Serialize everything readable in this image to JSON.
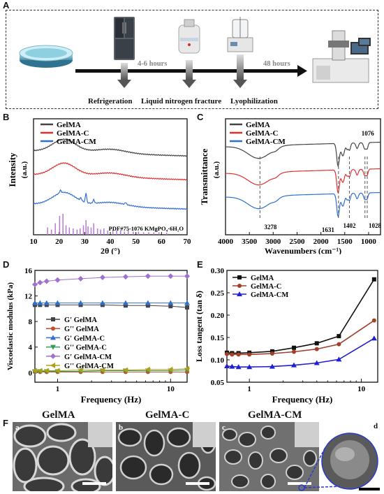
{
  "panels": {
    "a": "A",
    "b": "B",
    "c": "C",
    "d": "D",
    "e": "E",
    "f": "F"
  },
  "workflow": {
    "steps": [
      "Refrigeration",
      "Liquid nitrogen fracture",
      "Lyophilization"
    ],
    "times": [
      "4-6 hours",
      "48 hours"
    ]
  },
  "sem": {
    "titles": [
      "GelMA",
      "GelMA-C",
      "GelMA-CM"
    ],
    "sublabels": [
      "a",
      "b",
      "c",
      "d"
    ]
  },
  "chart_data": [
    {
      "id": "B",
      "type": "line",
      "xlabel": "2θ (°)",
      "ylabel": "Intensity",
      "ylabel_unit": "(a.u.)",
      "xlim": [
        10,
        70
      ],
      "xticks": [
        10,
        20,
        30,
        40,
        50,
        60,
        70
      ],
      "series": [
        {
          "name": "GelMA",
          "color": "#444444"
        },
        {
          "name": "GelMA-C",
          "color": "#e03030"
        },
        {
          "name": "GelMA-CM",
          "color": "#2f6fd0"
        }
      ],
      "reference": {
        "label": "PDF#75-1076 KMgPO₄·6H₂O",
        "color": "#b57ad0",
        "sticks": [
          [
            15.5,
            0.35
          ],
          [
            17,
            0.25
          ],
          [
            18.5,
            0.55
          ],
          [
            20.2,
            0.9
          ],
          [
            21.5,
            1.0
          ],
          [
            22.7,
            0.45
          ],
          [
            24,
            0.35
          ],
          [
            25.5,
            0.3
          ],
          [
            27,
            0.25
          ],
          [
            28.2,
            0.3
          ],
          [
            29.5,
            0.45
          ],
          [
            30.5,
            0.7
          ],
          [
            31.3,
            0.4
          ],
          [
            32.5,
            0.35
          ],
          [
            33.5,
            0.55
          ],
          [
            35,
            0.3
          ],
          [
            36.2,
            0.25
          ],
          [
            37.5,
            0.3
          ],
          [
            39,
            0.2
          ],
          [
            41,
            0.25
          ],
          [
            42.5,
            0.2
          ],
          [
            44,
            0.2
          ],
          [
            45.5,
            0.15
          ],
          [
            47,
            0.2
          ],
          [
            49,
            0.15
          ],
          [
            51,
            0.15
          ],
          [
            53,
            0.12
          ],
          [
            55,
            0.12
          ],
          [
            57,
            0.12
          ],
          [
            59,
            0.12
          ],
          [
            62,
            0.1
          ]
        ]
      }
    },
    {
      "id": "C",
      "type": "line",
      "xlabel": "Wavenumbers  (cm⁻¹)",
      "ylabel": "Transmittance",
      "ylabel_unit": "(a.u.)",
      "xlim": [
        4000,
        750
      ],
      "xticks": [
        4000,
        3500,
        3000,
        2500,
        2000,
        1500,
        1000
      ],
      "series": [
        {
          "name": "GelMA",
          "color": "#444444"
        },
        {
          "name": "GelMA-C",
          "color": "#e03030"
        },
        {
          "name": "GelMA-CM",
          "color": "#2f6fd0"
        }
      ],
      "annotations": [
        {
          "x": 3278,
          "label": "3278"
        },
        {
          "x": 1631,
          "label": "1631"
        },
        {
          "x": 1402,
          "label": "1402"
        },
        {
          "x": 1076,
          "label": "1076"
        },
        {
          "x": 1028,
          "label": "1028"
        }
      ]
    },
    {
      "id": "D",
      "type": "line",
      "x_scale": "log",
      "xlabel": "Frequency (Hz)",
      "ylabel": "Viscoelastic modulus (kPa)",
      "xlim": [
        0.63,
        14
      ],
      "ylim": [
        -1.5,
        16
      ],
      "yticks": [
        0,
        4,
        8,
        12,
        16
      ],
      "xticks": [
        1,
        10
      ],
      "x": [
        0.63,
        0.7,
        0.8,
        1,
        1.6,
        2.5,
        4,
        6.3,
        10,
        14
      ],
      "series": [
        {
          "name": "G'  GelMA",
          "marker": "square",
          "color": "#444444",
          "values": [
            10.6,
            10.6,
            10.6,
            10.6,
            10.6,
            10.6,
            10.5,
            10.5,
            10.4,
            10.2
          ]
        },
        {
          "name": "G''  GelMA",
          "marker": "circle",
          "color": "#c0502a",
          "values": [
            0.1,
            0.1,
            0.1,
            0.1,
            0.1,
            0.1,
            0.1,
            0.1,
            0.1,
            0.1
          ]
        },
        {
          "name": "G'  GelMA-C",
          "marker": "triangle-up",
          "color": "#2f6fd0",
          "values": [
            10.9,
            10.9,
            10.9,
            10.9,
            10.9,
            10.9,
            10.9,
            10.9,
            10.9,
            10.9
          ]
        },
        {
          "name": "G''  GelMA-C",
          "marker": "triangle-down",
          "color": "#3a9a5a",
          "values": [
            0.2,
            0.2,
            0.2,
            0.2,
            0.2,
            0.3,
            0.3,
            0.3,
            0.3,
            0.4
          ]
        },
        {
          "name": "G'  GelMA-CM",
          "marker": "diamond",
          "color": "#a070d0",
          "values": [
            13.8,
            14.1,
            14.3,
            14.5,
            14.7,
            14.9,
            15.0,
            15.1,
            15.1,
            15.1
          ]
        },
        {
          "name": "G''  GelMA-CM",
          "marker": "triangle-left",
          "color": "#b0a010",
          "values": [
            0.3,
            0.3,
            0.3,
            0.3,
            0.4,
            0.4,
            0.4,
            0.5,
            0.5,
            0.6
          ]
        }
      ]
    },
    {
      "id": "E",
      "type": "line",
      "x_scale": "log",
      "xlabel": "Frequency (Hz)",
      "ylabel": "Loss tangent (tan δ)",
      "xlim": [
        0.63,
        14
      ],
      "ylim": [
        0.05,
        0.3
      ],
      "yticks": [
        0.05,
        0.1,
        0.15,
        0.2,
        0.25,
        0.3
      ],
      "xticks": [
        1,
        10
      ],
      "x": [
        0.63,
        0.7,
        0.8,
        1,
        1.6,
        2.5,
        4,
        6.3,
        13
      ],
      "series": [
        {
          "name": "GelMA",
          "marker": "square",
          "color": "#111111",
          "values": [
            0.116,
            0.115,
            0.115,
            0.116,
            0.119,
            0.127,
            0.137,
            0.153,
            0.28
          ]
        },
        {
          "name": "GelMA-C",
          "marker": "circle",
          "color": "#a0402a",
          "values": [
            0.113,
            0.112,
            0.112,
            0.112,
            0.114,
            0.118,
            0.124,
            0.135,
            0.188
          ]
        },
        {
          "name": "GelMA-CM",
          "marker": "triangle-up",
          "color": "#2020d0",
          "values": [
            0.086,
            0.085,
            0.084,
            0.084,
            0.085,
            0.088,
            0.093,
            0.101,
            0.148
          ]
        }
      ]
    }
  ]
}
